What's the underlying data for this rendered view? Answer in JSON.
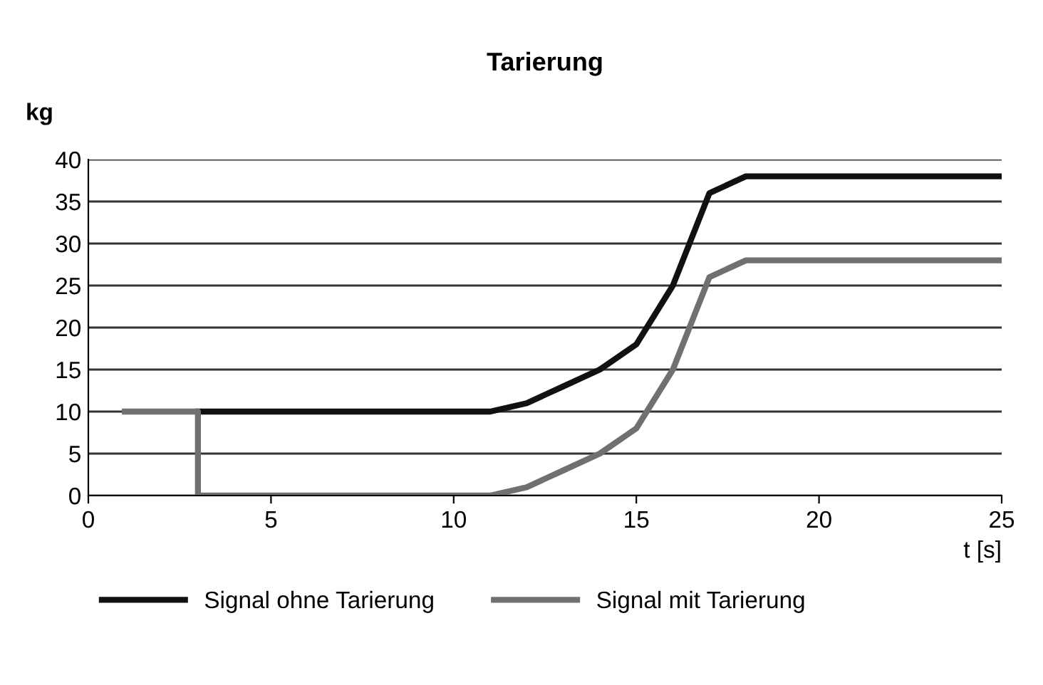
{
  "chart_data": {
    "type": "line",
    "title": "Tarierung",
    "xlabel": "t [s]",
    "ylabel": "kg",
    "xlim": [
      0,
      25
    ],
    "xticks": [
      0,
      5,
      10,
      15,
      20,
      25
    ],
    "ylim": [
      0,
      40
    ],
    "yticks": [
      0,
      5,
      10,
      15,
      20,
      25,
      30,
      35,
      40
    ],
    "grid": "y",
    "legend": "bottom",
    "marker": "none",
    "line_style": "solid",
    "series": [
      {
        "name": "Signal ohne Tarierung",
        "color": "#111111",
        "x": [
          3,
          11,
          12,
          13,
          14,
          15,
          16,
          17,
          18,
          25
        ],
        "values": [
          10,
          10,
          11,
          13,
          15,
          18,
          25,
          36,
          38,
          38
        ]
      },
      {
        "name": "Signal mit Tarierung",
        "color": "#707070",
        "x": [
          1,
          3,
          3,
          11,
          12,
          13,
          14,
          15,
          16,
          17,
          18,
          25
        ],
        "values": [
          10,
          10,
          0,
          0,
          1,
          3,
          5,
          8,
          15,
          26,
          28,
          28
        ]
      }
    ]
  }
}
